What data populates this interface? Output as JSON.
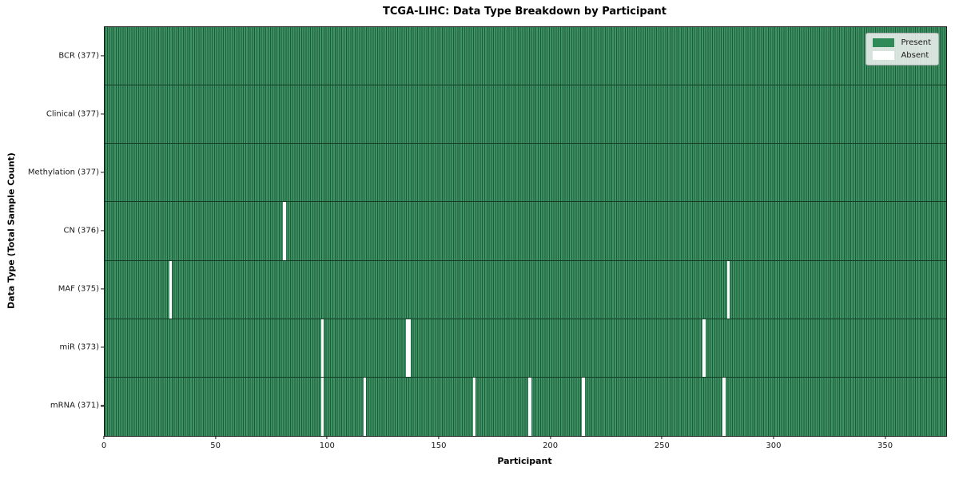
{
  "chart_data": {
    "type": "heatmap",
    "title": "TCGA-LIHC: Data Type Breakdown by Participant",
    "xlabel": "Participant",
    "ylabel": "Data Type (Total Sample Count)",
    "x_range": [
      0,
      377
    ],
    "n_participants": 377,
    "x_ticks": [
      0,
      50,
      100,
      150,
      200,
      250,
      300,
      350
    ],
    "grid": false,
    "legend_position": "upper right",
    "rows": [
      {
        "label": "BCR (377)",
        "data_type": "BCR",
        "present_count": 377,
        "absent_participants": []
      },
      {
        "label": "Clinical (377)",
        "data_type": "Clinical",
        "present_count": 377,
        "absent_participants": []
      },
      {
        "label": "Methylation (377)",
        "data_type": "Methylation",
        "present_count": 377,
        "absent_participants": []
      },
      {
        "label": "CN (376)",
        "data_type": "CN",
        "present_count": 376,
        "absent_participants": [
          80
        ]
      },
      {
        "label": "MAF (375)",
        "data_type": "MAF",
        "present_count": 375,
        "absent_participants": [
          29,
          279
        ]
      },
      {
        "label": "miR (373)",
        "data_type": "miR",
        "present_count": 373,
        "absent_participants": [
          97,
          135,
          136,
          268
        ]
      },
      {
        "label": "mRNA (371)",
        "data_type": "mRNA",
        "present_count": 371,
        "absent_participants": [
          97,
          116,
          165,
          190,
          214,
          277
        ]
      }
    ],
    "legend": [
      {
        "label": "Present",
        "color": "#2e8b57"
      },
      {
        "label": "Absent",
        "color": "#ffffff"
      }
    ],
    "colors": {
      "present": "#2e8b57",
      "present_stripe_light": "#3f9466",
      "present_stripe_dark": "#1d5a37",
      "absent": "#ffffff"
    }
  }
}
